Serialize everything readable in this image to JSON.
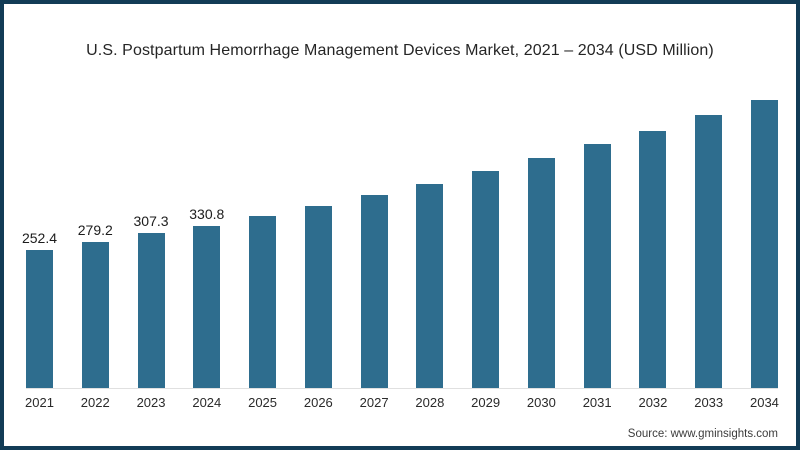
{
  "page": {
    "frame_border_color": "#123c56",
    "background_color": "#ffffff"
  },
  "chart_data": {
    "type": "bar",
    "title": "U.S. Postpartum Hemorrhage Management Devices Market, 2021 – 2034 (USD Million)",
    "source": "Source: www.gminsights.com",
    "bar_color": "#2e6d8e",
    "axis_line_color": "#e0e0e0",
    "grid": "off",
    "legend": "none",
    "xlabel": "",
    "ylabel": "USD Million",
    "categories": [
      "2021",
      "2022",
      "2023",
      "2024",
      "2025",
      "2026",
      "2027",
      "2028",
      "2029",
      "2030",
      "2031",
      "2032",
      "2033",
      "2034"
    ],
    "points": [
      {
        "year": "2021",
        "value": 252.4,
        "label": "252.4"
      },
      {
        "year": "2022",
        "value": 279.2,
        "label": "279.2"
      },
      {
        "year": "2023",
        "value": 307.3,
        "label": "307.3"
      },
      {
        "year": "2024",
        "value": 330.8,
        "label": "330.8"
      },
      {
        "year": "2025",
        "value": 362,
        "label": null
      },
      {
        "year": "2026",
        "value": 395,
        "label": null
      },
      {
        "year": "2027",
        "value": 430,
        "label": null
      },
      {
        "year": "2028",
        "value": 465,
        "label": null
      },
      {
        "year": "2029",
        "value": 507,
        "label": null
      },
      {
        "year": "2030",
        "value": 549,
        "label": null
      },
      {
        "year": "2031",
        "value": 594,
        "label": null
      },
      {
        "year": "2032",
        "value": 636,
        "label": null
      },
      {
        "year": "2033",
        "value": 687,
        "label": null
      },
      {
        "year": "2034",
        "value": 736,
        "label": null
      }
    ]
  }
}
